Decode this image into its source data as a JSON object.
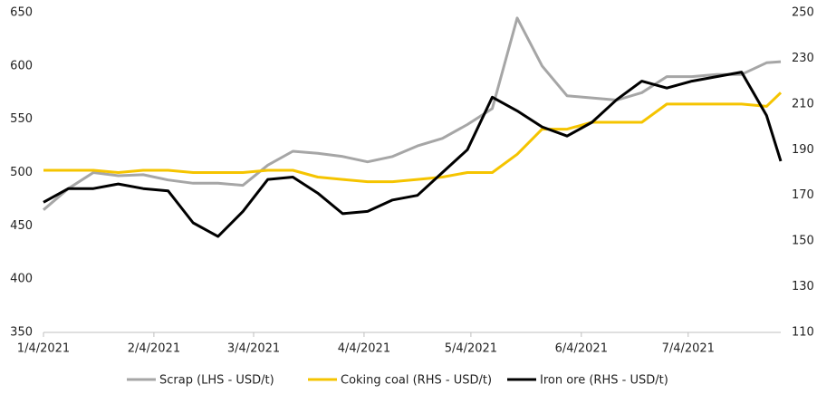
{
  "chart_data": {
    "type": "line",
    "x": [
      "1/4/2021",
      "1/11/2021",
      "1/18/2021",
      "1/25/2021",
      "2/1/2021",
      "2/8/2021",
      "2/15/2021",
      "2/22/2021",
      "3/1/2021",
      "3/8/2021",
      "3/15/2021",
      "3/22/2021",
      "3/29/2021",
      "4/5/2021",
      "4/12/2021",
      "4/19/2021",
      "4/26/2021",
      "5/3/2021",
      "5/10/2021",
      "5/17/2021",
      "5/24/2021",
      "5/31/2021",
      "6/7/2021",
      "6/14/2021",
      "6/21/2021",
      "6/28/2021",
      "7/5/2021",
      "7/12/2021",
      "7/19/2021",
      "7/26/2021",
      "7/30/2021"
    ],
    "xlim": [
      "1/4/2021",
      "7/30/2021"
    ],
    "xticks": [
      "1/4/2021",
      "2/4/2021",
      "3/4/2021",
      "4/4/2021",
      "5/4/2021",
      "6/4/2021",
      "7/4/2021"
    ],
    "ylim": [
      350,
      650
    ],
    "yticks": [
      350,
      400,
      450,
      500,
      550,
      600,
      650
    ],
    "y2lim": [
      110,
      250
    ],
    "y2ticks": [
      110,
      130,
      150,
      170,
      190,
      210,
      230,
      250
    ],
    "series": [
      {
        "name": "Scrap (LHS - USD/t)",
        "color": "#a6a6a6",
        "axis": "y",
        "values": [
          465,
          485,
          500,
          497,
          498,
          493,
          490,
          490,
          488,
          507,
          520,
          518,
          515,
          510,
          515,
          525,
          532,
          545,
          560,
          645,
          600,
          572,
          570,
          568,
          575,
          590,
          590,
          592,
          592,
          603,
          604
        ]
      },
      {
        "name": "Coking coal (RHS - USD/t)",
        "color": "#f5c400",
        "axis": "y2",
        "values": [
          181,
          181,
          181,
          180,
          181,
          181,
          180,
          180,
          180,
          181,
          181,
          178,
          177,
          176,
          176,
          177,
          178,
          180,
          180,
          188,
          199,
          199,
          202,
          202,
          202,
          210,
          210,
          210,
          210,
          209,
          215
        ]
      },
      {
        "name": "Iron ore (RHS - USD/t)",
        "color": "#000000",
        "axis": "y2",
        "values": [
          167,
          173,
          173,
          175,
          173,
          172,
          158,
          152,
          163,
          177,
          178,
          171,
          162,
          163,
          168,
          170,
          180,
          190,
          213,
          207,
          200,
          196,
          202,
          212,
          220,
          217,
          220,
          222,
          224,
          205,
          185
        ]
      }
    ]
  }
}
